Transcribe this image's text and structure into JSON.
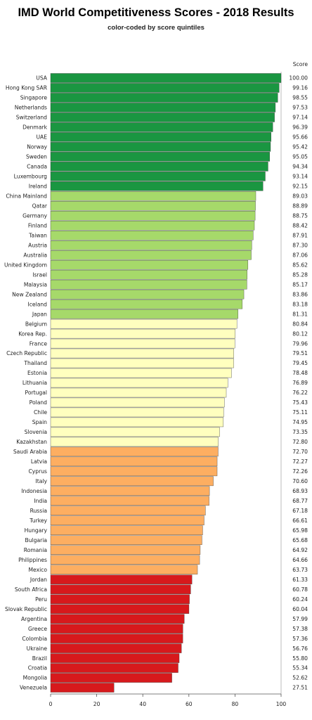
{
  "chart_data": {
    "type": "bar",
    "orientation": "horizontal",
    "title": "IMD World Competitiveness Scores - 2018 Results",
    "subtitle": "color-coded by score quintiles",
    "score_header": "Score",
    "xlim": [
      0,
      100
    ],
    "xticks": [
      0,
      20,
      40,
      60,
      80,
      100
    ],
    "grid": "vertical line at 100",
    "quintile_colors": [
      "#1a9641",
      "#a6d96a",
      "#ffffbf",
      "#fdae61",
      "#d7191c"
    ],
    "categories": [
      "USA",
      "Hong Kong SAR",
      "Singapore",
      "Netherlands",
      "Switzerland",
      "Denmark",
      "UAE",
      "Norway",
      "Sweden",
      "Canada",
      "Luxembourg",
      "Ireland",
      "China Mainland",
      "Qatar",
      "Germany",
      "Finland",
      "Taiwan",
      "Austria",
      "Australia",
      "United Kingdom",
      "Israel",
      "Malaysia",
      "New Zealand",
      "Iceland",
      "Japan",
      "Belgium",
      "Korea Rep.",
      "France",
      "Czech Republic",
      "Thailand",
      "Estonia",
      "Lithuania",
      "Portugal",
      "Poland",
      "Chile",
      "Spain",
      "Slovenia",
      "Kazakhstan",
      "Saudi Arabia",
      "Latvia",
      "Cyprus",
      "Italy",
      "Indonesia",
      "India",
      "Russia",
      "Turkey",
      "Hungary",
      "Bulgaria",
      "Romania",
      "Philippines",
      "Mexico",
      "Jordan",
      "South Africa",
      "Peru",
      "Slovak Republic",
      "Argentina",
      "Greece",
      "Colombia",
      "Ukraine",
      "Brazil",
      "Croatia",
      "Mongolia",
      "Venezuela"
    ],
    "values": [
      100.0,
      99.16,
      98.55,
      97.53,
      97.14,
      96.39,
      95.66,
      95.42,
      95.05,
      94.34,
      93.14,
      92.15,
      89.03,
      88.89,
      88.75,
      88.42,
      87.91,
      87.3,
      87.06,
      85.62,
      85.28,
      85.17,
      83.86,
      83.18,
      81.31,
      80.84,
      80.12,
      79.96,
      79.51,
      79.45,
      78.48,
      76.89,
      76.22,
      75.43,
      75.11,
      74.95,
      73.35,
      72.8,
      72.7,
      72.27,
      72.26,
      70.6,
      68.93,
      68.77,
      67.18,
      66.61,
      65.98,
      65.68,
      64.92,
      64.66,
      63.73,
      61.33,
      60.78,
      60.24,
      60.04,
      57.99,
      57.38,
      57.36,
      56.76,
      55.8,
      55.34,
      52.62,
      27.51
    ],
    "value_labels": [
      "100.00",
      "99.16",
      "98.55",
      "97.53",
      "97.14",
      "96.39",
      "95.66",
      "95.42",
      "95.05",
      "94.34",
      "93.14",
      "92.15",
      "89.03",
      "88.89",
      "88.75",
      "88.42",
      "87.91",
      "87.30",
      "87.06",
      "85.62",
      "85.28",
      "85.17",
      "83.86",
      "83.18",
      "81.31",
      "80.84",
      "80.12",
      "79.96",
      "79.51",
      "79.45",
      "78.48",
      "76.89",
      "76.22",
      "75.43",
      "75.11",
      "74.95",
      "73.35",
      "72.80",
      "72.70",
      "72.27",
      "72.26",
      "70.60",
      "68.93",
      "68.77",
      "67.18",
      "66.61",
      "65.98",
      "65.68",
      "64.92",
      "64.66",
      "63.73",
      "61.33",
      "60.78",
      "60.24",
      "60.04",
      "57.99",
      "57.38",
      "57.36",
      "56.76",
      "55.80",
      "55.34",
      "52.62",
      "27.51"
    ],
    "quintile": [
      0,
      0,
      0,
      0,
      0,
      0,
      0,
      0,
      0,
      0,
      0,
      0,
      1,
      1,
      1,
      1,
      1,
      1,
      1,
      1,
      1,
      1,
      1,
      1,
      1,
      2,
      2,
      2,
      2,
      2,
      2,
      2,
      2,
      2,
      2,
      2,
      2,
      2,
      3,
      3,
      3,
      3,
      3,
      3,
      3,
      3,
      3,
      3,
      3,
      3,
      3,
      4,
      4,
      4,
      4,
      4,
      4,
      4,
      4,
      4,
      4,
      4,
      4
    ]
  }
}
